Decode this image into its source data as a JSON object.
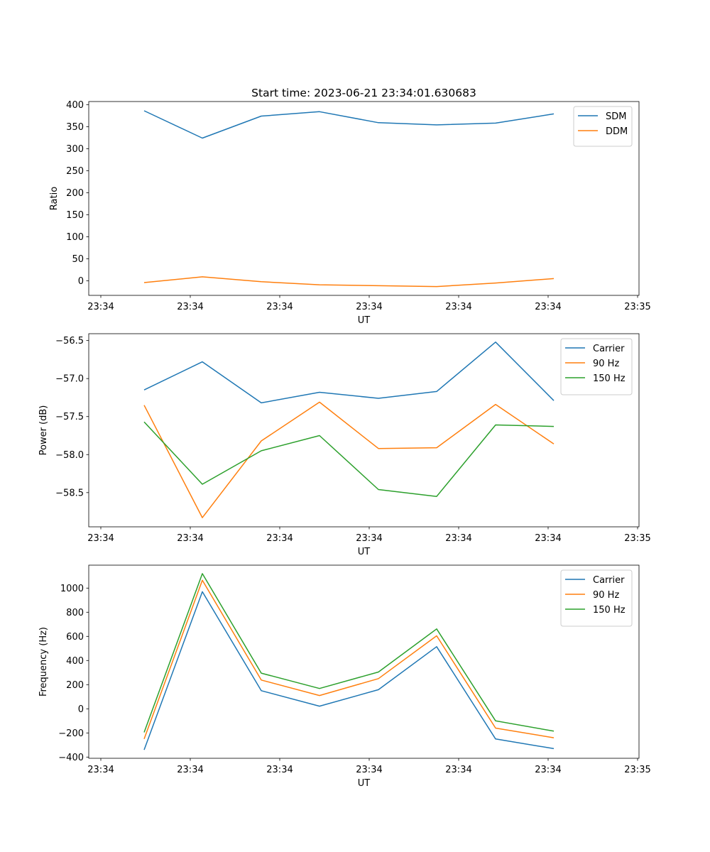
{
  "chart_data": [
    {
      "type": "line",
      "title": "Start time: 2023-06-21 23:34:01.630683",
      "xlabel": "UT",
      "ylabel": "Ratio",
      "x_tick_labels": [
        "23:34",
        "23:34",
        "23:34",
        "23:34",
        "23:34",
        "23:34",
        "23:34"
      ],
      "x_tick_labels_right": "23:35",
      "yticks": [
        0,
        50,
        100,
        150,
        200,
        250,
        300,
        350,
        400
      ],
      "ylim": [
        -33,
        407
      ],
      "legend_position": "upper right",
      "series": [
        {
          "name": "SDM",
          "color": "#1f77b4",
          "values": [
            386,
            324,
            374,
            384,
            359,
            354,
            358,
            379
          ]
        },
        {
          "name": "DDM",
          "color": "#ff7f0e",
          "values": [
            -4,
            9,
            -2,
            -9,
            -11,
            -13,
            -5,
            5
          ]
        }
      ]
    },
    {
      "type": "line",
      "xlabel": "UT",
      "ylabel": "Power (dB)",
      "x_tick_labels": [
        "23:34",
        "23:34",
        "23:34",
        "23:34",
        "23:34",
        "23:34",
        "23:34"
      ],
      "x_tick_labels_right": "23:35",
      "yticks": [
        -58.5,
        -58.0,
        -57.5,
        -57.0,
        -56.5
      ],
      "ytick_labels": [
        "−58.5",
        "−58.0",
        "−57.5",
        "−57.0",
        "−56.5"
      ],
      "ylim": [
        -58.95,
        -56.41
      ],
      "legend_position": "upper right",
      "series": [
        {
          "name": "Carrier",
          "color": "#1f77b4",
          "values": [
            -57.15,
            -56.78,
            -57.32,
            -57.18,
            -57.26,
            -57.17,
            -56.52,
            -57.29
          ]
        },
        {
          "name": "90 Hz",
          "color": "#ff7f0e",
          "values": [
            -57.35,
            -58.83,
            -57.82,
            -57.31,
            -57.92,
            -57.91,
            -57.34,
            -57.86
          ]
        },
        {
          "name": "150 Hz",
          "color": "#2ca02c",
          "values": [
            -57.57,
            -58.39,
            -57.95,
            -57.75,
            -58.46,
            -58.55,
            -57.61,
            -57.63
          ]
        }
      ]
    },
    {
      "type": "line",
      "xlabel": "UT",
      "ylabel": "Frequency (Hz)",
      "x_tick_labels": [
        "23:34",
        "23:34",
        "23:34",
        "23:34",
        "23:34",
        "23:34",
        "23:34"
      ],
      "x_tick_labels_right": "23:35",
      "yticks": [
        -400,
        -200,
        0,
        200,
        400,
        600,
        800,
        1000
      ],
      "ytick_labels": [
        "−400",
        "−200",
        "0",
        "200",
        "400",
        "600",
        "800",
        "1000"
      ],
      "ylim": [
        -410,
        1190
      ],
      "legend_position": "upper right",
      "series": [
        {
          "name": "Carrier",
          "color": "#1f77b4",
          "values": [
            -340,
            970,
            150,
            22,
            158,
            515,
            -250,
            -330
          ]
        },
        {
          "name": "90 Hz",
          "color": "#ff7f0e",
          "values": [
            -250,
            1065,
            238,
            110,
            250,
            605,
            -160,
            -240
          ]
        },
        {
          "name": "150 Hz",
          "color": "#2ca02c",
          "values": [
            -195,
            1120,
            295,
            168,
            305,
            662,
            -100,
            -185
          ]
        }
      ]
    }
  ]
}
